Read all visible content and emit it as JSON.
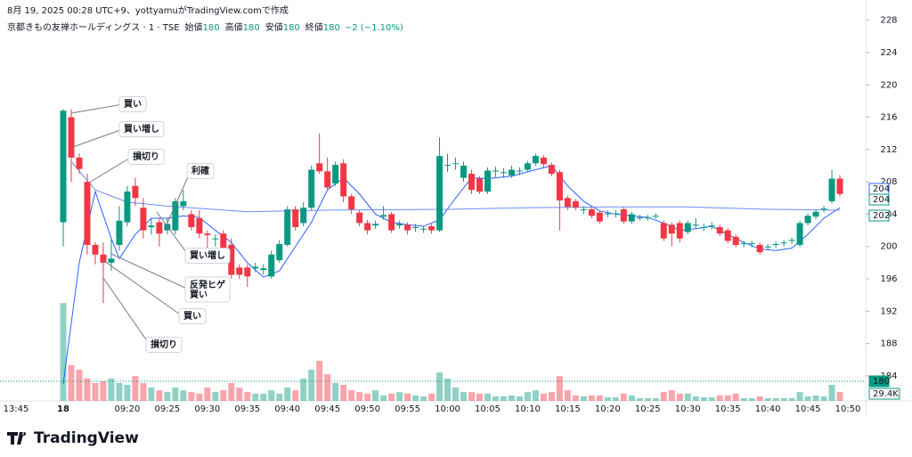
{
  "header": "8月 19, 2025 00:28 UTC+9、yottyamuがTradingView.comで作成",
  "logo": "TradingView",
  "chart_data": {
    "type": "candlestick",
    "legend": {
      "symbol": "京都きもの友禅ホールディングス · 1 · TSE",
      "fields": [
        {
          "label": "始値",
          "value": "180"
        },
        {
          "label": "高値",
          "value": "180"
        },
        {
          "label": "安値",
          "value": "180"
        },
        {
          "label": "終値",
          "value": "180"
        }
      ],
      "change": "−2 (−1.10%)"
    },
    "categories": [
      "09:12",
      "09:13",
      "09:14",
      "09:15",
      "09:16",
      "09:17",
      "09:18",
      "09:19",
      "09:20",
      "09:21",
      "09:22",
      "09:23",
      "09:24",
      "09:25",
      "09:26",
      "09:27",
      "09:28",
      "09:29",
      "09:30",
      "09:31",
      "09:32",
      "09:33",
      "09:34",
      "09:35",
      "09:36",
      "09:37",
      "09:38",
      "09:39",
      "09:40",
      "09:41",
      "09:42",
      "09:43",
      "09:44",
      "09:45",
      "09:46",
      "09:47",
      "09:48",
      "09:49",
      "09:50",
      "09:51",
      "09:52",
      "09:53",
      "09:54",
      "09:55",
      "09:56",
      "09:57",
      "09:58",
      "09:59",
      "10:00",
      "10:01",
      "10:02",
      "10:03",
      "10:04",
      "10:05",
      "10:06",
      "10:07",
      "10:08",
      "10:09",
      "10:10",
      "10:11",
      "10:12",
      "10:13",
      "10:14",
      "10:15",
      "10:16",
      "10:17",
      "10:18",
      "10:19",
      "10:20",
      "10:21",
      "10:22",
      "10:23",
      "10:24",
      "10:25",
      "10:26",
      "10:27",
      "10:28",
      "10:29",
      "10:30",
      "10:31",
      "10:32",
      "10:33",
      "10:34",
      "10:35",
      "10:36",
      "10:37",
      "10:38",
      "10:39",
      "10:40",
      "10:41",
      "10:42",
      "10:43",
      "10:44",
      "10:45",
      "10:46",
      "10:47",
      "10:48",
      "10:49"
    ],
    "open": [
      203,
      216,
      211,
      208,
      200.2,
      199,
      198,
      200.2,
      203,
      207.5,
      204.8,
      202.4,
      203,
      202,
      202,
      205,
      204,
      203.5,
      201.6,
      200.9,
      201.6,
      200.2,
      197.4,
      197.4,
      197.3,
      197.1,
      196.3,
      198.3,
      200.2,
      204.6,
      202.9,
      204.8,
      210.3,
      209.3,
      207.8,
      210.3,
      206.2,
      204.2,
      202.9,
      202.6,
      203.7,
      204,
      202.6,
      202.7,
      202.3,
      202.1,
      202.5,
      202,
      210,
      210.2,
      208.5,
      209,
      208.4,
      206.8,
      209.3,
      209.1,
      208.8,
      209.3,
      209.5,
      210.3,
      211,
      210.1,
      209.2,
      206,
      205.6,
      204.5,
      204.6,
      204.2,
      204,
      204,
      204.6,
      203.1,
      203.5,
      203.5,
      203.7,
      202.9,
      202.7,
      202.9,
      201.8,
      202.6,
      202.3,
      202.5,
      202.4,
      202,
      201.2,
      200.3,
      200.3,
      200.2,
      199.9,
      200.2,
      200.4,
      200.7,
      200.2,
      202.9,
      203.7,
      204.6,
      205.6,
      208.4
    ],
    "high": [
      217,
      217,
      211.5,
      209,
      200.5,
      200.5,
      201,
      205,
      207.5,
      208.5,
      206,
      203.5,
      203.5,
      203.5,
      206,
      207,
      204.5,
      204.5,
      202,
      201.5,
      202,
      201,
      197.8,
      197.8,
      198,
      197.8,
      199.5,
      200.8,
      205,
      205,
      205.5,
      210,
      214,
      211,
      210.5,
      210.8,
      206.5,
      204.5,
      203.3,
      203.2,
      205,
      204.3,
      203.2,
      203,
      202.8,
      202.5,
      202.8,
      213.5,
      211.5,
      211,
      210.5,
      209.5,
      208.7,
      209.8,
      209.9,
      209.7,
      210,
      209.8,
      210.6,
      211.5,
      211.3,
      210.4,
      209.5,
      206.3,
      205.9,
      205,
      204.9,
      204.5,
      204.5,
      204.5,
      204.9,
      204.3,
      203.9,
      203.9,
      204.1,
      203.2,
      203,
      203.2,
      203.2,
      203.5,
      202.8,
      203,
      202.7,
      202.3,
      201.5,
      200.7,
      200.7,
      200.5,
      200.3,
      200.6,
      200.8,
      201.1,
      203.2,
      204.1,
      204.6,
      205,
      209.5,
      208.8
    ],
    "low": [
      200,
      208,
      209,
      199,
      197.8,
      193,
      197,
      199.5,
      202.5,
      205,
      201,
      201.5,
      200,
      201.5,
      201.5,
      204.5,
      202,
      201,
      199,
      200,
      199.5,
      196,
      196,
      195,
      196.8,
      196.5,
      196,
      198,
      200,
      202,
      202.5,
      204.5,
      209,
      207,
      207.5,
      205.5,
      204,
      202.5,
      201.5,
      202.2,
      203.3,
      201.7,
      202.2,
      201.5,
      201.8,
      201.7,
      201.6,
      201.8,
      209.2,
      209.5,
      208,
      206.5,
      206.5,
      206.5,
      208.6,
      208.5,
      208.5,
      208.8,
      209.2,
      210,
      209.8,
      208.7,
      202,
      204.5,
      204.5,
      204,
      203.5,
      202.8,
      203.6,
      203.6,
      202.8,
      202.8,
      203.2,
      203.2,
      203.4,
      200.7,
      200,
      200.5,
      201.5,
      202.2,
      201.9,
      202.1,
      201.3,
      200.4,
      199.9,
      199.9,
      199.9,
      199,
      199.5,
      199.8,
      200,
      200.3,
      199.9,
      202.6,
      203.4,
      204.2,
      205.3,
      206.2
    ],
    "close": [
      216.8,
      211,
      209.6,
      200.2,
      199,
      198,
      198.5,
      203.2,
      206.8,
      206,
      202,
      202.6,
      201.6,
      202.8,
      205.6,
      205.6,
      202.4,
      201.6,
      201.4,
      201,
      199.8,
      196.5,
      196.5,
      196.3,
      197.5,
      197.3,
      199,
      200.3,
      204.6,
      202.4,
      204.8,
      209.5,
      209.3,
      207.3,
      210.1,
      206.2,
      204.6,
      202.9,
      202,
      202.8,
      203.9,
      202,
      202.8,
      202,
      202.4,
      202.2,
      202,
      211.2,
      210.1,
      210.3,
      210,
      207,
      206.8,
      209.4,
      209.4,
      209.2,
      209.5,
      209.4,
      210.3,
      211.2,
      210.2,
      209,
      205.7,
      204.9,
      204.8,
      204.6,
      203.8,
      203.1,
      204.1,
      204.1,
      203.1,
      204,
      203.6,
      203.6,
      203.8,
      201,
      201.6,
      201,
      202.9,
      202.7,
      202.4,
      202.6,
      201.6,
      200.7,
      200.2,
      200.4,
      200.4,
      199.3,
      200,
      200.3,
      200.5,
      200.8,
      202.9,
      203.8,
      204.3,
      204.7,
      208.4,
      206.5
    ],
    "volume": [
      323,
      118,
      103,
      74,
      59,
      65,
      74,
      59,
      53,
      82,
      59,
      44,
      35,
      29,
      44,
      35,
      29,
      24,
      44,
      29,
      35,
      59,
      44,
      29,
      24,
      24,
      35,
      24,
      44,
      35,
      74,
      103,
      132,
      88,
      59,
      53,
      35,
      29,
      24,
      35,
      18,
      24,
      29,
      24,
      18,
      15,
      24,
      94,
      74,
      44,
      29,
      29,
      24,
      24,
      15,
      15,
      18,
      15,
      29,
      35,
      24,
      29,
      82,
      35,
      18,
      15,
      18,
      18,
      12,
      12,
      24,
      18,
      9,
      9,
      9,
      29,
      35,
      24,
      24,
      15,
      12,
      12,
      18,
      18,
      24,
      9,
      9,
      15,
      9,
      9,
      9,
      9,
      29,
      15,
      18,
      15,
      53,
      29
    ],
    "up_color": "#089981",
    "down_color": "#f23645",
    "lines": [
      {
        "color": "#2962ff",
        "x": [
          "09:12",
          "09:14",
          "09:16",
          "09:18",
          "09:19",
          "09:21",
          "09:23",
          "09:25",
          "09:27",
          "09:29",
          "09:31",
          "09:33",
          "09:35",
          "09:37",
          "09:39",
          "09:41",
          "09:43",
          "09:45",
          "09:47",
          "09:49",
          "09:51",
          "09:53",
          "09:55",
          "09:57",
          "09:59",
          "10:01",
          "10:03",
          "10:05",
          "10:08",
          "10:11",
          "10:13",
          "10:15",
          "10:17",
          "10:19",
          "10:21",
          "10:23",
          "10:25",
          "10:27",
          "10:29",
          "10:31",
          "10:33",
          "10:35",
          "10:37",
          "10:39",
          "10:41",
          "10:43",
          "10:45",
          "10:47",
          "10:49"
        ],
        "values": [
          183,
          198,
          206.8,
          201,
          198.5,
          201.5,
          203.5,
          203.5,
          203.8,
          203.6,
          202,
          200.5,
          198,
          196.2,
          197,
          200,
          203,
          207,
          208.5,
          206.5,
          204,
          203,
          202.7,
          202.5,
          203.3,
          206,
          208.5,
          208.4,
          208.7,
          209.5,
          210,
          207.5,
          205.6,
          204.4,
          204,
          203.8,
          203.6,
          202.9,
          202,
          202.2,
          202.5,
          201.5,
          200.5,
          199.7,
          199.5,
          199.8,
          201.5,
          203.5,
          204.8
        ]
      },
      {
        "color": "#6b8ff2",
        "x": [
          "09:13",
          "09:16",
          "09:20",
          "09:25",
          "09:35",
          "09:45",
          "10:00",
          "10:10",
          "10:20",
          "10:30",
          "10:40",
          "10:49"
        ],
        "values": [
          210.5,
          207,
          205.5,
          205,
          204.3,
          204.5,
          204.6,
          204.8,
          204.9,
          204.9,
          204.6,
          204.5
        ]
      }
    ],
    "ylim": [
      180.9,
      229.4
    ],
    "yticks": [
      184,
      188,
      192,
      196,
      200,
      204,
      208,
      212,
      216,
      220,
      224,
      228
    ],
    "vlim": [
      0,
      400
    ],
    "grid": false,
    "xticks": [
      "13:45",
      "18",
      "09:20",
      "09:25",
      "09:30",
      "09:35",
      "09:40",
      "09:45",
      "09:50",
      "09:55",
      "10:00",
      "10:05",
      "10:10",
      "10:15",
      "10:20",
      "10:25",
      "10:30",
      "10:35",
      "10:40",
      "10:45",
      "10:50"
    ],
    "price_tags": [
      "204",
      "204",
      "202",
      "180",
      "29.4K"
    ],
    "annotations": [
      "買い",
      "買い増し",
      "損切り",
      "利確",
      "買い増し",
      "反発ヒゲ\n買い",
      "買い",
      "損切り"
    ]
  }
}
